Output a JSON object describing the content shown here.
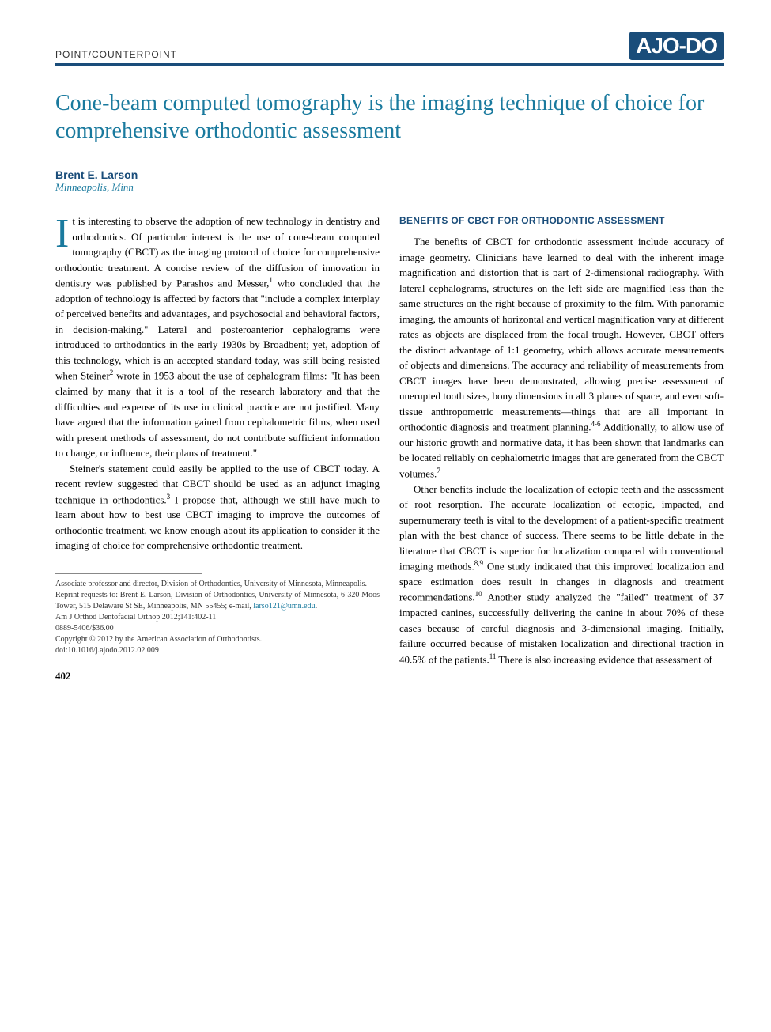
{
  "header": {
    "section_label": "POINT/COUNTERPOINT",
    "journal_logo": "AJO-DO"
  },
  "title": "Cone-beam computed tomography is the imaging technique of choice for comprehensive orthodontic assessment",
  "author": {
    "name": "Brent E. Larson",
    "location": "Minneapolis, Minn"
  },
  "body": {
    "dropcap": "I",
    "para1_after_dropcap": "t is interesting to observe the adoption of new technology in dentistry and orthodontics. Of particular interest is the use of cone-beam computed tomography (CBCT) as the imaging protocol of choice for comprehensive orthodontic treatment. A concise review of the diffusion of innovation in dentistry was published by Parashos and Messer,",
    "para1_sup1": "1",
    "para1_cont1": " who concluded that the adoption of technology is affected by factors that \"include a complex interplay of perceived benefits and advantages, and psychosocial and behavioral factors, in decision-making.\" Lateral and posteroanterior cephalograms were introduced to orthodontics in the early 1930s by Broadbent; yet, adoption of this technology, which is an accepted standard today, was still being resisted when Steiner",
    "para1_sup2": "2",
    "para1_cont2": " wrote in 1953 about the use of cephalogram films: \"It has been claimed by many that it is a tool of the research laboratory and that the difficulties and expense of its use in clinical practice are not justified. Many have argued that the information gained from cephalometric films, when used with present methods of assessment, do not contribute sufficient information to change, or influence, their plans of treatment.\"",
    "para2_a": "Steiner's statement could easily be applied to the use of CBCT today. A recent review suggested that CBCT should be used as an adjunct imaging technique in orthodontics.",
    "para2_sup": "3",
    "para2_b": " I propose that, although we still have much to learn about how to best use CBCT imaging to improve the outcomes of orthodontic treatment, we know enough about its application to consider it the imaging of choice for comprehensive orthodontic treatment.",
    "section_heading": "BENEFITS OF CBCT FOR ORTHODONTIC ASSESSMENT",
    "para3_a": "The benefits of CBCT for orthodontic assessment include accuracy of image geometry. Clinicians have learned to deal with the inherent image magnification and distortion that is part of 2-dimensional radiography. With lateral cephalograms, structures on the left side are magnified less than the same structures on the right because of proximity to the film. With panoramic imaging, the amounts of horizontal and vertical magnification vary at different rates as objects are displaced from the focal trough. However, CBCT offers the distinct advantage of 1:1 geometry, which allows accurate measurements of objects and dimensions. The accuracy and reliability of measurements from CBCT images have been demonstrated, allowing precise assessment of unerupted tooth sizes, bony dimensions in all 3 planes of space, and even soft-tissue anthropometric measurements—things that are all important in orthodontic diagnosis and treatment planning.",
    "para3_sup1": "4-6",
    "para3_b": " Additionally, to allow use of our historic growth and normative data, it has been shown that landmarks can be located reliably on cephalometric images that are generated from the CBCT volumes.",
    "para3_sup2": "7",
    "para4_a": "Other benefits include the localization of ectopic teeth and the assessment of root resorption. The accurate localization of ectopic, impacted, and supernumerary teeth is vital to the development of a patient-specific treatment plan with the best chance of success. There seems to be little debate in the literature that CBCT is superior for localization compared with conventional imaging methods.",
    "para4_sup1": "8,9",
    "para4_b": " One study indicated that this improved localization and space estimation does result in changes in diagnosis and treatment recommendations.",
    "para4_sup2": "10",
    "para4_c": " Another study analyzed the \"failed\" treatment of 37 impacted canines, successfully delivering the canine in about 70% of these cases because of careful diagnosis and 3-dimensional imaging. Initially, failure occurred because of mistaken localization and directional traction in 40.5% of the patients.",
    "para4_sup3": "11",
    "para4_d": " There is also increasing evidence that assessment of"
  },
  "footer": {
    "line1": "Associate professor and director, Division of Orthodontics, University of Minnesota, Minneapolis.",
    "line2_a": "Reprint requests to: Brent E. Larson, Division of Orthodontics, University of Minnesota, 6-320 Moos Tower, 515 Delaware St SE, Minneapolis, MN 55455; e-mail, ",
    "email": "larso121@umn.edu",
    "line2_b": ".",
    "line3": "Am J Orthod Dentofacial Orthop 2012;141:402-11",
    "line4": "0889-5406/$36.00",
    "line5": "Copyright © 2012 by the American Association of Orthodontists.",
    "line6": "doi:10.1016/j.ajodo.2012.02.009"
  },
  "page_number": "402",
  "colors": {
    "primary_blue": "#1a4d7a",
    "teal": "#1a7a9e",
    "text": "#000000",
    "background": "#ffffff",
    "footer_text": "#333333",
    "separator": "#888888"
  },
  "typography": {
    "title_size": 28,
    "body_size": 13,
    "author_size": 14,
    "section_label_size": 12,
    "footer_size": 10,
    "dropcap_size": 52
  }
}
